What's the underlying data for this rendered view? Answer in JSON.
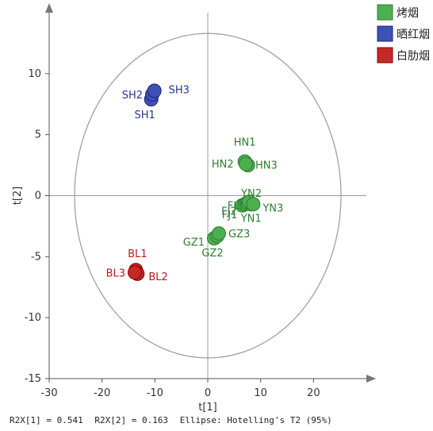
{
  "chart_data": {
    "type": "scatter",
    "xlabel": "t[1]",
    "ylabel": "t[2]",
    "xlim": [
      -30,
      30
    ],
    "ylim": [
      -15,
      15
    ],
    "xticks": [
      -30,
      -20,
      -10,
      0,
      10,
      20
    ],
    "yticks": [
      -15,
      -10,
      -5,
      0,
      5,
      10
    ],
    "ellipse": {
      "cx": 0,
      "cy": 0,
      "rx": 25.2,
      "ry": 13.3
    },
    "legend_position": "top-right",
    "series": [
      {
        "name": "烤烟",
        "color": "#4caf50",
        "stroke": "#2e7d32",
        "label_color": "#2e7d32",
        "points": [
          {
            "label": "HN1",
            "x": 7.0,
            "y": 2.8
          },
          {
            "label": "HN2",
            "x": 7.6,
            "y": 2.5
          },
          {
            "label": "HN3",
            "x": 7.2,
            "y": 2.6
          },
          {
            "label": "FJ1",
            "x": 6.5,
            "y": -0.8
          },
          {
            "label": "FJ2",
            "x": 7.0,
            "y": -0.7
          },
          {
            "label": "FJ3",
            "x": 7.4,
            "y": -0.6
          },
          {
            "label": "YN1",
            "x": 8.2,
            "y": -0.7
          },
          {
            "label": "YN2",
            "x": 7.8,
            "y": -0.5
          },
          {
            "label": "YN3",
            "x": 8.6,
            "y": -0.7
          },
          {
            "label": "GZ1",
            "x": 1.2,
            "y": -3.5
          },
          {
            "label": "GZ2",
            "x": 1.8,
            "y": -3.3
          },
          {
            "label": "GZ3",
            "x": 2.1,
            "y": -3.1
          }
        ]
      },
      {
        "name": "晒红烟",
        "color": "#3f51b5",
        "stroke": "#1a237e",
        "label_color": "#283593",
        "points": [
          {
            "label": "SH1",
            "x": -10.7,
            "y": 7.9
          },
          {
            "label": "SH2",
            "x": -10.5,
            "y": 8.3
          },
          {
            "label": "SH3",
            "x": -10.1,
            "y": 8.6
          }
        ]
      },
      {
        "name": "白肋烟",
        "color": "#c62828",
        "stroke": "#7f0000",
        "label_color": "#b71c1c",
        "points": [
          {
            "label": "BL1",
            "x": -13.6,
            "y": -6.1
          },
          {
            "label": "BL2",
            "x": -13.3,
            "y": -6.4
          },
          {
            "label": "BL3",
            "x": -13.8,
            "y": -6.3
          }
        ]
      }
    ]
  },
  "footer": {
    "r2x1": "R2X[1] = 0.541",
    "r2x2": "R2X[2] = 0.163",
    "ellipse": "Ellipse: Hotelling's T2 (95%)"
  }
}
